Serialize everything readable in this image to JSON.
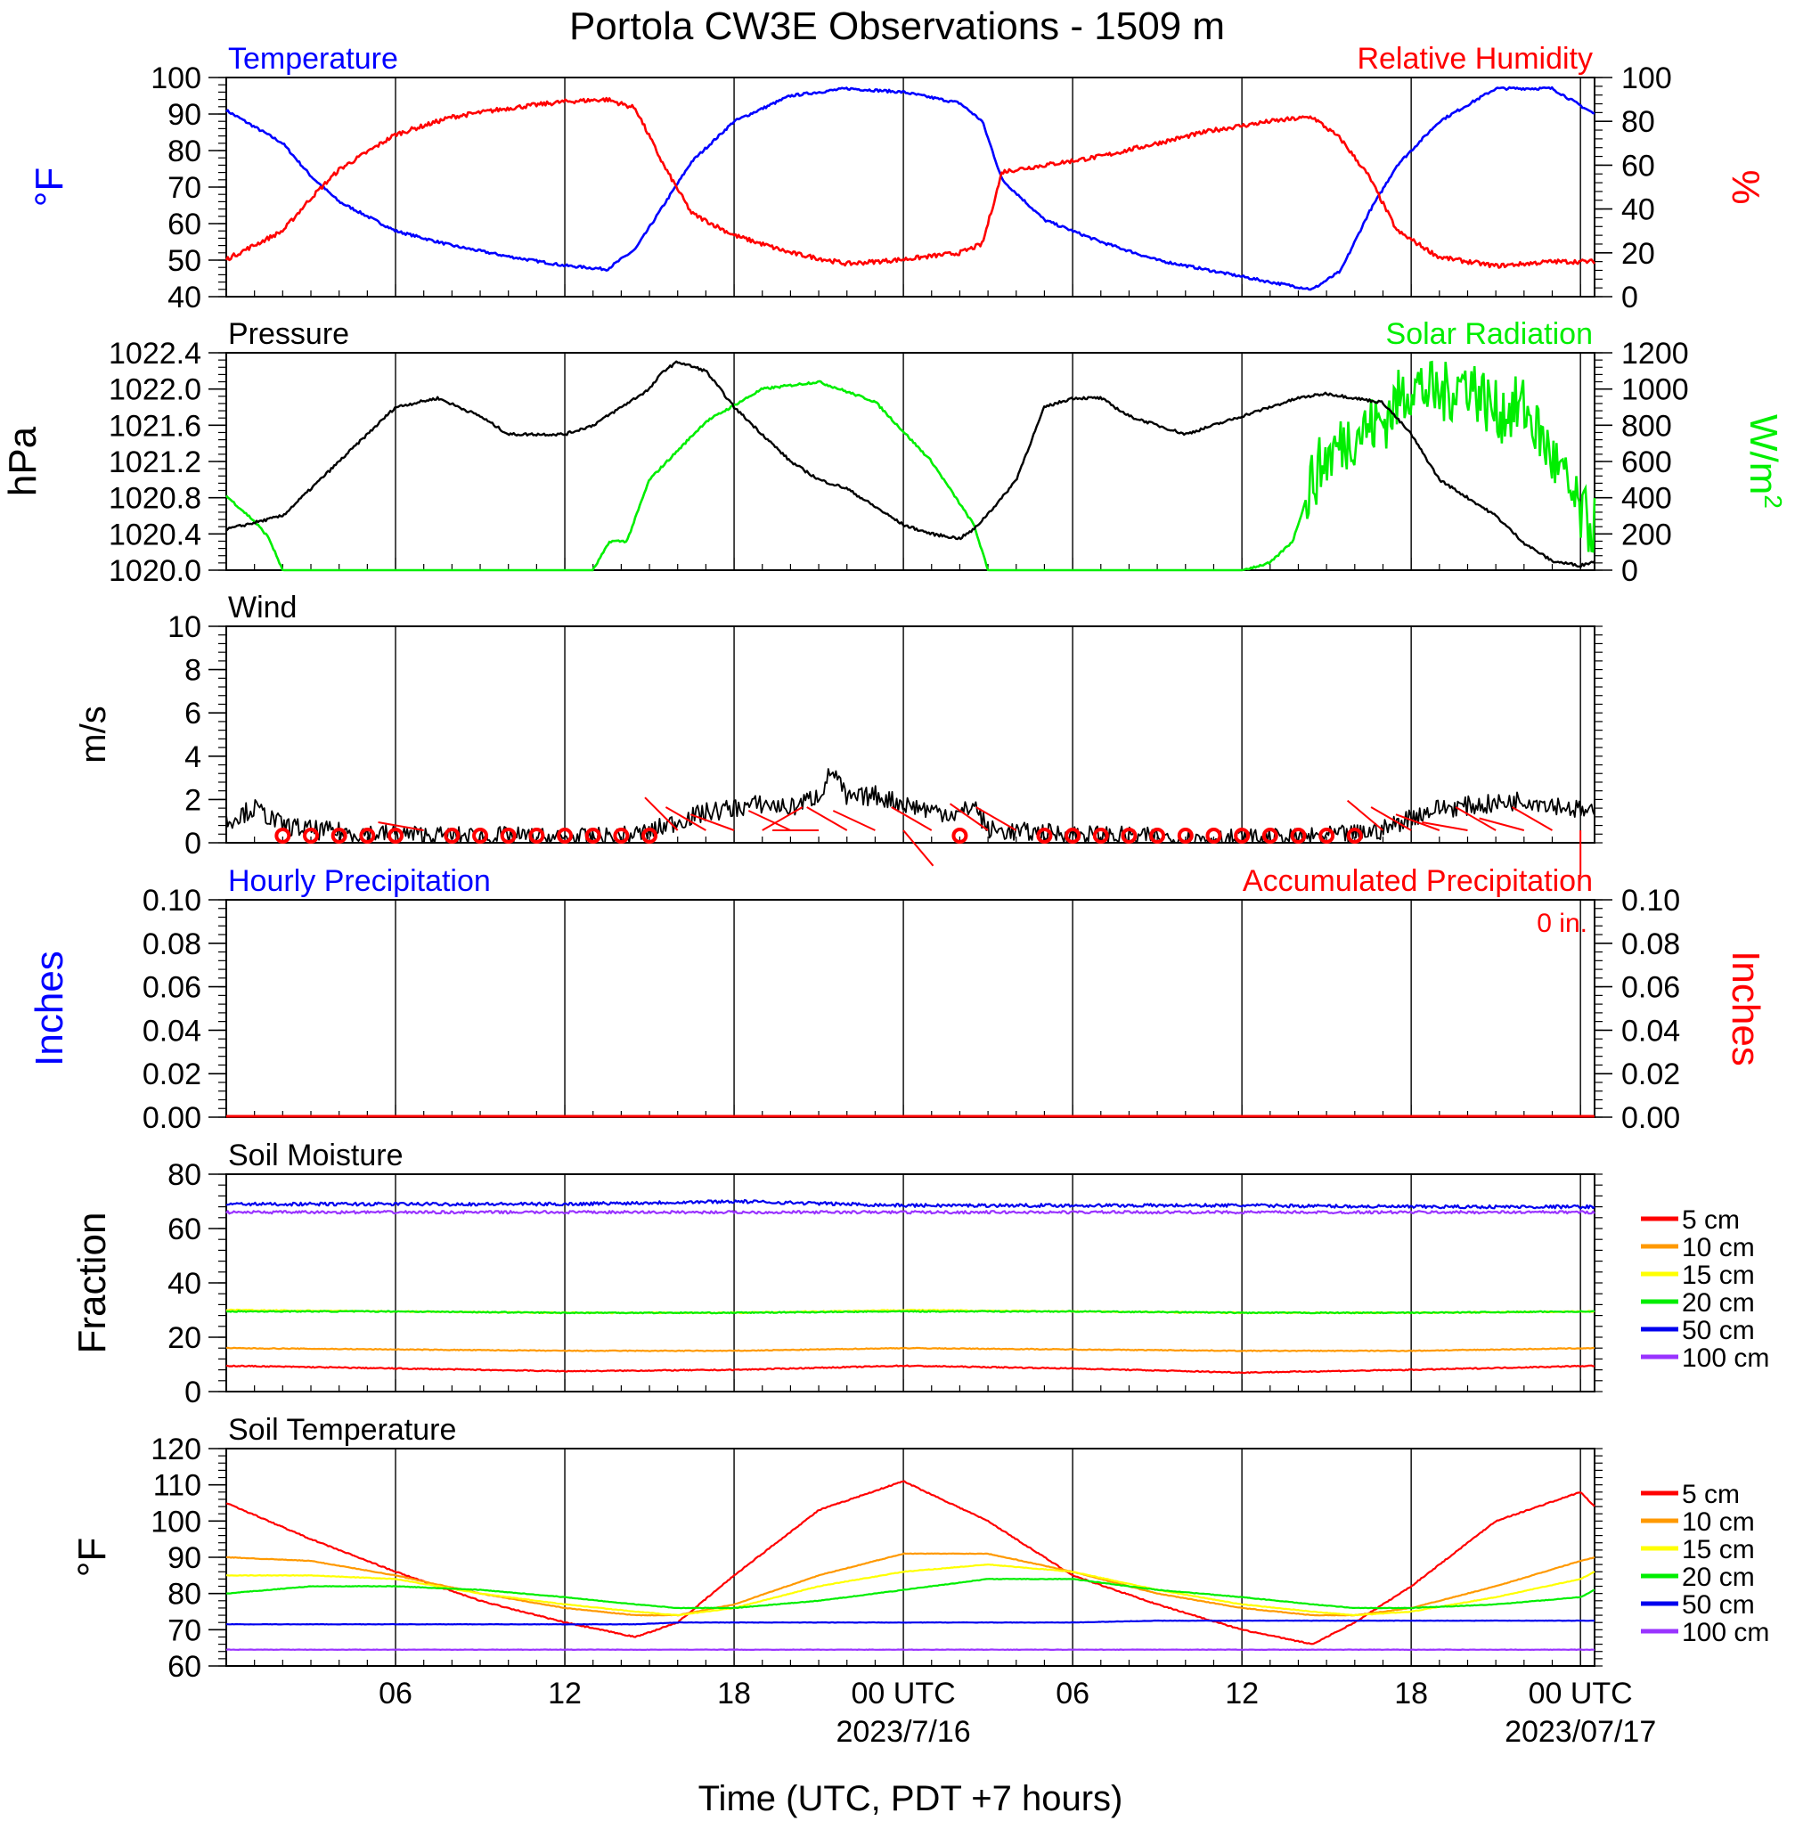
{
  "figure": {
    "title": "Portola CW3E Observations - 1509 m",
    "xlabel": "Time (UTC, PDT +7 hours)",
    "x_ticks": [
      "06",
      "12",
      "18",
      "00 UTC",
      "06",
      "12",
      "18",
      "00 UTC"
    ],
    "x_dates": [
      "2023/7/16",
      "2023/07/17"
    ]
  },
  "chart_data": [
    {
      "type": "line",
      "panel": "temperature-humidity",
      "title_left": "Temperature",
      "title_right": "Relative Humidity",
      "ylabel_left": "°F",
      "ylabel_right": "%",
      "ylim_left": [
        40,
        100
      ],
      "ylim_right": [
        0,
        100
      ],
      "y_ticks_left": [
        "100",
        "90",
        "80",
        "70",
        "60",
        "50",
        "40"
      ],
      "y_ticks_right": [
        "100",
        "80",
        "60",
        "40",
        "20",
        "0"
      ],
      "x_hours": [
        0,
        2,
        3,
        4,
        6,
        8,
        10,
        12,
        13.5,
        14.5,
        15.5,
        16.5,
        18,
        20,
        22,
        24,
        26,
        26.8,
        27.5,
        29,
        31,
        33,
        35,
        37,
        38.5,
        39.5,
        40.5,
        41.5,
        43,
        45,
        47,
        48.5
      ],
      "series": [
        {
          "name": "Temperature",
          "color": "#0000ff",
          "axis": "left",
          "values": [
            91,
            82,
            73,
            66,
            58,
            54,
            51,
            48.5,
            47.5,
            53,
            65,
            77,
            88,
            95,
            97,
            96,
            93,
            88,
            72,
            61,
            55,
            50,
            47,
            44,
            42,
            47,
            63,
            76,
            88,
            97,
            97,
            90
          ]
        },
        {
          "name": "Relative Humidity",
          "color": "#ff0000",
          "axis": "right",
          "values": [
            17,
            30,
            45,
            58,
            74,
            82,
            86,
            89,
            90,
            86,
            60,
            38,
            28,
            20,
            15,
            17,
            20,
            24,
            57,
            60,
            64,
            70,
            76,
            80,
            82,
            72,
            55,
            30,
            18,
            14,
            16,
            16
          ]
        }
      ]
    },
    {
      "type": "line",
      "panel": "pressure-solar",
      "title_left": "Pressure",
      "title_right": "Solar Radiation",
      "ylabel_left": "hPa",
      "ylabel_right": "W/m",
      "ylabel_right_sup": "2",
      "ylim_left": [
        1020.0,
        1022.4
      ],
      "ylim_right": [
        0,
        1200
      ],
      "y_ticks_left": [
        "1022.4",
        "1022.0",
        "1021.6",
        "1021.2",
        "1020.8",
        "1020.4",
        "1020.0"
      ],
      "y_ticks_right": [
        "1200",
        "1000",
        "800",
        "600",
        "400",
        "200",
        "0"
      ],
      "pressure_series": {
        "name": "Pressure",
        "color": "#000000",
        "x": [
          0,
          2,
          4,
          6,
          7.5,
          9,
          10,
          11,
          12,
          13,
          14,
          15,
          15.5,
          16,
          17,
          18,
          19,
          20,
          21,
          22,
          23,
          24,
          25,
          26,
          26.5,
          27.5,
          28,
          29,
          30,
          31,
          32,
          33,
          34,
          35,
          36,
          37,
          38,
          39,
          40,
          41,
          42,
          43,
          44,
          45,
          46,
          47,
          48,
          48.5
        ],
        "values": [
          1020.45,
          1020.6,
          1021.2,
          1021.8,
          1021.9,
          1021.7,
          1021.5,
          1021.5,
          1021.5,
          1021.6,
          1021.8,
          1022.0,
          1022.2,
          1022.3,
          1022.2,
          1021.8,
          1021.5,
          1021.2,
          1021.0,
          1020.9,
          1020.7,
          1020.5,
          1020.4,
          1020.35,
          1020.45,
          1020.8,
          1021.0,
          1021.8,
          1021.9,
          1021.9,
          1021.7,
          1021.6,
          1021.5,
          1021.6,
          1021.7,
          1021.8,
          1021.9,
          1021.95,
          1021.9,
          1021.85,
          1021.5,
          1021.0,
          1020.8,
          1020.6,
          1020.3,
          1020.1,
          1020.05,
          1020.1
        ]
      },
      "solar_series": {
        "name": "Solar Radiation",
        "color": "#00ee00",
        "x": [
          0,
          1,
          1.5,
          2,
          8,
          13,
          13.6,
          14.2,
          15,
          17,
          19,
          21,
          23,
          25,
          26.5,
          27,
          30,
          36,
          37,
          37.8,
          38.5,
          39,
          40,
          41,
          42,
          43,
          44,
          45,
          46,
          47,
          48,
          48.5
        ],
        "values": [
          410,
          270,
          180,
          0,
          0,
          0,
          160,
          160,
          500,
          820,
          1000,
          1040,
          930,
          600,
          250,
          0,
          0,
          0,
          40,
          160,
          500,
          620,
          760,
          820,
          1030,
          960,
          1050,
          870,
          900,
          620,
          300,
          230
        ]
      }
    },
    {
      "type": "line",
      "panel": "wind",
      "title_left": "Wind",
      "ylabel_left": "m/s",
      "ylim_left": [
        0,
        10
      ],
      "y_ticks_left": [
        "10",
        "8",
        "6",
        "4",
        "2",
        "0"
      ],
      "speed_series": {
        "name": "Wind",
        "color": "#000000",
        "x": [
          0,
          1,
          2,
          3,
          4,
          6,
          8,
          10,
          12,
          14,
          15,
          16,
          17,
          18,
          19,
          20,
          21,
          21.5,
          22,
          23,
          24,
          25,
          26,
          26.5,
          27,
          28,
          30,
          32,
          34,
          36,
          38,
          40,
          41,
          42,
          43,
          44,
          45,
          46,
          47,
          48,
          48.5
        ],
        "values": [
          1.0,
          1.6,
          0.8,
          0.6,
          0.5,
          0.4,
          0.3,
          0.3,
          0.2,
          0.3,
          0.5,
          1.0,
          1.4,
          1.6,
          1.8,
          1.6,
          2.2,
          3.4,
          2.0,
          2.2,
          1.8,
          1.5,
          1.3,
          1.8,
          0.6,
          0.5,
          0.4,
          0.3,
          0.2,
          0.2,
          0.2,
          0.4,
          0.6,
          1.2,
          1.6,
          1.7,
          1.8,
          2.0,
          1.8,
          1.5,
          1.3
        ]
      },
      "barbs": {
        "color": "#ff0000",
        "x": [
          2,
          3,
          4,
          5,
          6,
          7,
          8,
          9,
          10,
          11,
          12,
          13,
          14,
          15,
          16,
          17,
          18,
          19,
          20,
          21,
          22,
          23,
          24,
          25,
          26,
          27,
          28,
          29,
          30,
          31,
          32,
          33,
          34,
          35,
          36,
          37,
          38,
          39,
          40,
          41,
          42,
          43,
          44,
          45,
          46,
          47,
          48
        ],
        "speed": [
          0.3,
          0.3,
          0.3,
          0.3,
          0.1,
          0.7,
          0.1,
          0.1,
          0.2,
          0.3,
          0.1,
          0.2,
          0.1,
          0.4,
          1.0,
          1.5,
          1.9,
          1.6,
          1.7,
          3.0,
          1.6,
          1.8,
          2.0,
          2.0,
          0.3,
          1.4,
          1.2,
          0.1,
          0.3,
          0.1,
          0.1,
          0.1,
          0.4,
          0.1,
          0.2,
          0.1,
          0.2,
          0.4,
          0.1,
          1.0,
          1.3,
          1.6,
          1.4,
          1.8,
          1.6,
          2.0,
          0.6
        ],
        "direction": [
          0,
          0,
          0,
          0,
          0,
          260,
          0,
          0,
          0,
          0,
          0,
          0,
          0,
          0,
          225,
          240,
          250,
          120,
          245,
          270,
          240,
          245,
          40,
          240,
          0,
          235,
          240,
          0,
          0,
          0,
          0,
          0,
          0,
          0,
          0,
          0,
          0,
          0,
          0,
          230,
          240,
          250,
          260,
          240,
          255,
          240,
          0
        ]
      }
    },
    {
      "type": "line",
      "panel": "precipitation",
      "title_left": "Hourly Precipitation",
      "title_right": "Accumulated Precipitation",
      "annotation": "0 in.",
      "ylabel_left": "Inches",
      "ylabel_right": "Inches",
      "ylim_left": [
        0,
        0.1
      ],
      "ylim_right": [
        0,
        0.1
      ],
      "y_ticks_left": [
        "0.10",
        "0.08",
        "0.06",
        "0.04",
        "0.02",
        "0.00"
      ],
      "y_ticks_right": [
        "0.10",
        "0.08",
        "0.06",
        "0.04",
        "0.02",
        "0.00"
      ],
      "x_hours": [
        0,
        48.5
      ],
      "series": [
        {
          "name": "Hourly Precipitation",
          "color": "#0000ff",
          "values": [
            0,
            0
          ]
        },
        {
          "name": "Accumulated Precipitation",
          "color": "#ff0000",
          "values": [
            0,
            0
          ]
        }
      ]
    },
    {
      "type": "line",
      "panel": "soil-moisture",
      "title_left": "Soil Moisture",
      "ylabel_left": "Fraction",
      "ylim_left": [
        0,
        80
      ],
      "y_ticks_left": [
        "80",
        "60",
        "40",
        "20",
        "0"
      ],
      "legend_placement": "right",
      "x_hours": [
        0,
        6,
        12,
        18,
        24,
        30,
        36,
        42,
        48.5
      ],
      "series": [
        {
          "name": "5 cm",
          "color": "#ff0000",
          "values": [
            9.5,
            8.5,
            7.5,
            8,
            9.5,
            8.5,
            7,
            8,
            9.5
          ]
        },
        {
          "name": "10 cm",
          "color": "#ff9900",
          "values": [
            16,
            15.5,
            15,
            15,
            16,
            15.5,
            15,
            15,
            16
          ]
        },
        {
          "name": "15 cm",
          "color": "#ffff00",
          "values": [
            30,
            29.5,
            29,
            29,
            30,
            29.5,
            29,
            29,
            29.5
          ]
        },
        {
          "name": "20 cm",
          "color": "#00ee00",
          "values": [
            29.5,
            29.5,
            29,
            29,
            29.5,
            29.5,
            29,
            29,
            29.5
          ]
        },
        {
          "name": "50 cm",
          "color": "#0000ee",
          "values": [
            69,
            69,
            69,
            70,
            68.5,
            68.5,
            68.5,
            68,
            68
          ]
        },
        {
          "name": "100 cm",
          "color": "#9933ff",
          "values": [
            66,
            66,
            66,
            66,
            66,
            66,
            66,
            66,
            66
          ]
        }
      ]
    },
    {
      "type": "line",
      "panel": "soil-temperature",
      "title_left": "Soil Temperature",
      "ylabel_left": "°F",
      "ylim_left": [
        60,
        120
      ],
      "y_ticks_left": [
        "120",
        "110",
        "100",
        "90",
        "80",
        "70",
        "60"
      ],
      "legend_placement": "right",
      "x_hours": [
        0,
        3,
        6,
        9,
        12,
        14.5,
        16,
        18,
        21,
        24,
        27,
        30,
        33,
        36,
        38.5,
        40,
        42,
        45,
        48,
        48.5
      ],
      "series": [
        {
          "name": "5 cm",
          "color": "#ff0000",
          "values": [
            105,
            95,
            86,
            78,
            72,
            68,
            72,
            85,
            103,
            111,
            100,
            85,
            77,
            70,
            66,
            72,
            82,
            100,
            108,
            104
          ]
        },
        {
          "name": "10 cm",
          "color": "#ff9900",
          "values": [
            90,
            89,
            85,
            80,
            76,
            74,
            74,
            77,
            85,
            91,
            91,
            86,
            80,
            76,
            74,
            74,
            76,
            82,
            89,
            90
          ]
        },
        {
          "name": "15 cm",
          "color": "#ffff00",
          "values": [
            85,
            85,
            84,
            80,
            77,
            75,
            74,
            76,
            82,
            86,
            88,
            86,
            81,
            77,
            75,
            74,
            75,
            79,
            84,
            86
          ]
        },
        {
          "name": "20 cm",
          "color": "#00ee00",
          "values": [
            80,
            82,
            82,
            81,
            79,
            77,
            76,
            76,
            78,
            81,
            84,
            84,
            81,
            79,
            77,
            76,
            76,
            77,
            79,
            81
          ]
        },
        {
          "name": "50 cm",
          "color": "#0000ee",
          "values": [
            71.5,
            71.5,
            71.5,
            71.5,
            71.5,
            71.5,
            72,
            72,
            72,
            72,
            72,
            72,
            72.5,
            72.5,
            72.5,
            72.5,
            72.5,
            72.5,
            72.5,
            72.5
          ]
        },
        {
          "name": "100 cm",
          "color": "#9933ff",
          "values": [
            64.5,
            64.5,
            64.5,
            64.5,
            64.5,
            64.5,
            64.5,
            64.5,
            64.5,
            64.5,
            64.5,
            64.5,
            64.5,
            64.5,
            64.5,
            64.5,
            64.5,
            64.5,
            64.5,
            64.5
          ]
        }
      ]
    }
  ]
}
